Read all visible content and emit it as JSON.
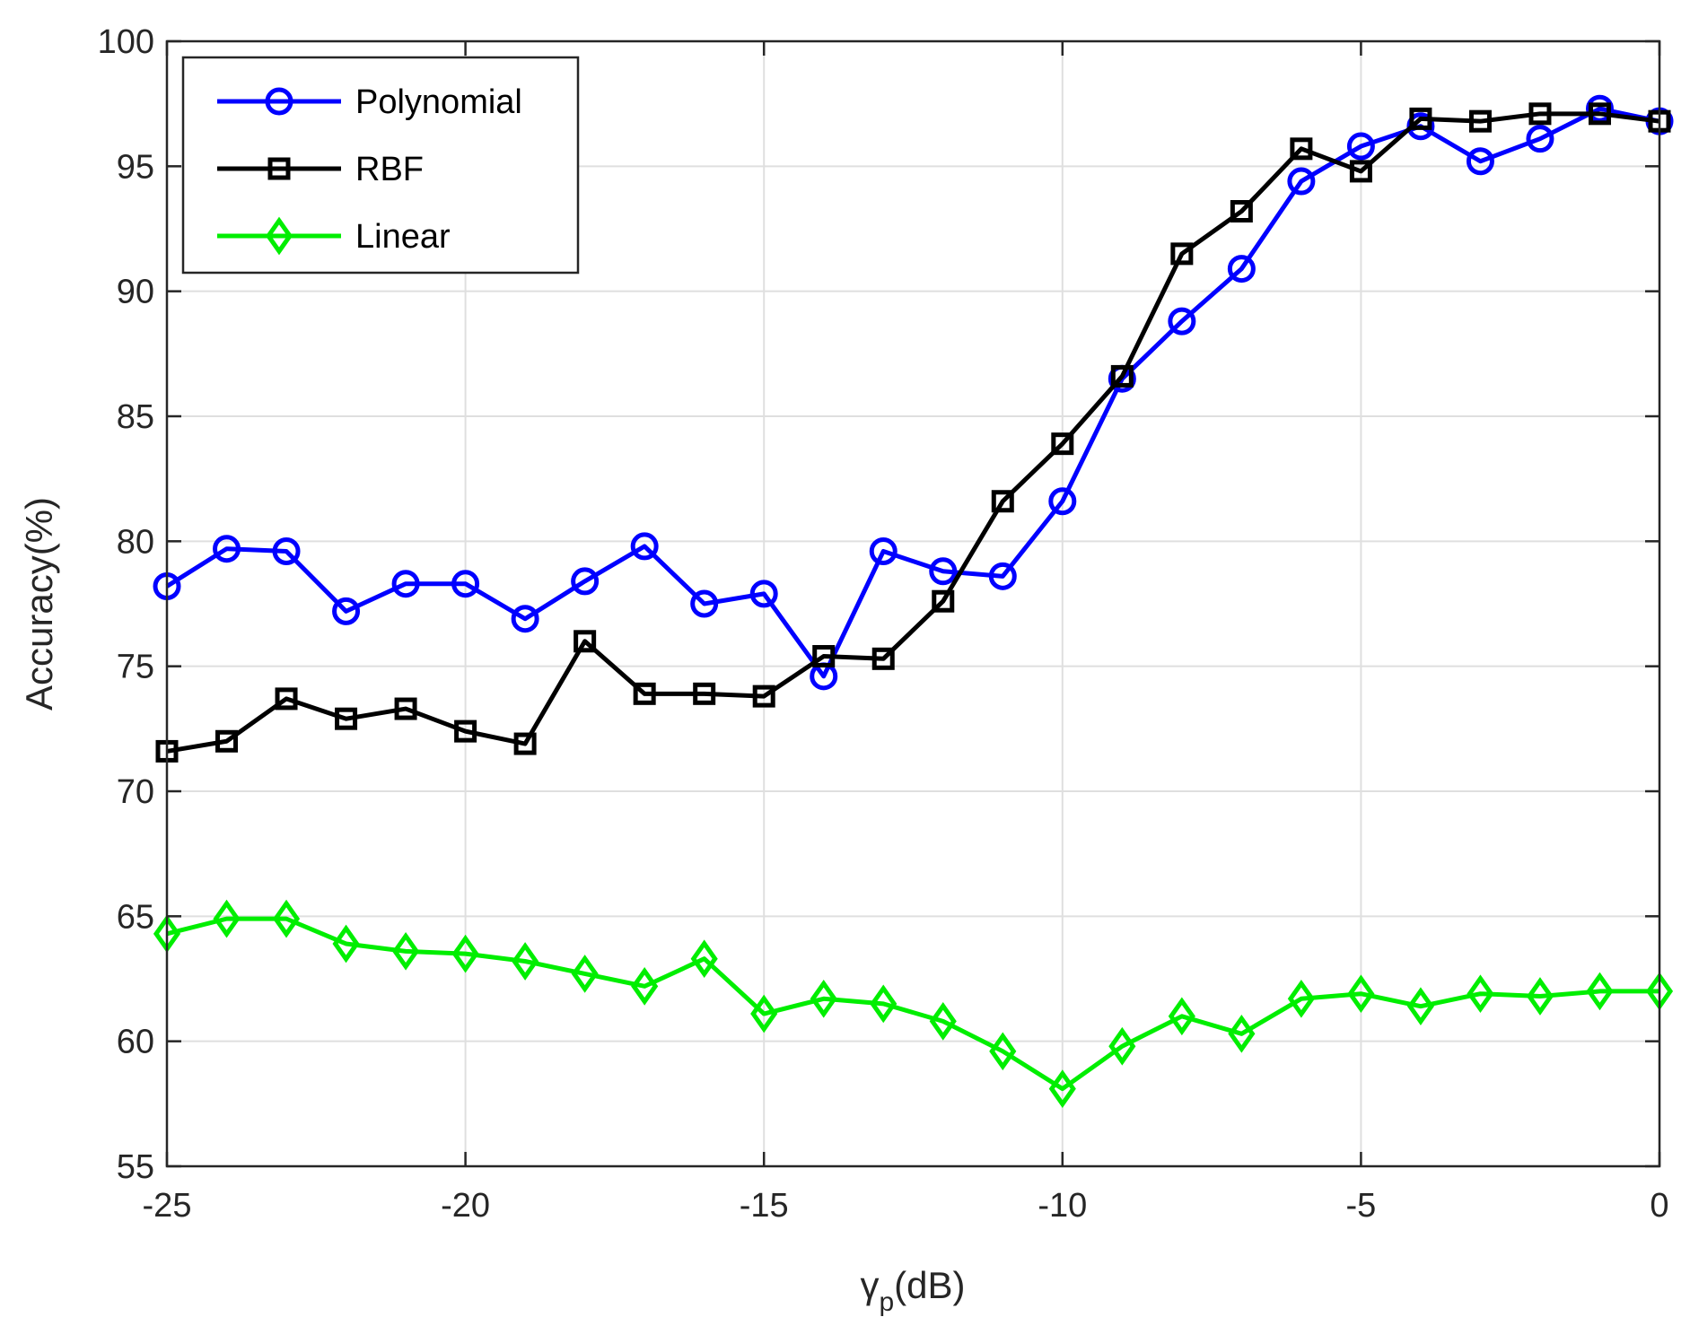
{
  "chart_data": {
    "type": "line",
    "title": "",
    "xlabel": "γ",
    "xlabel_sub": "p",
    "xlabel_tail": "(dB)",
    "ylabel": "Accuracy(%)",
    "xlim": [
      -25,
      0
    ],
    "ylim": [
      55,
      100
    ],
    "xticks": [
      -25,
      -20,
      -15,
      -10,
      -5,
      0
    ],
    "yticks": [
      55,
      60,
      65,
      70,
      75,
      80,
      85,
      90,
      95,
      100
    ],
    "grid": true,
    "legend_position": "top-left",
    "x": [
      -25,
      -24,
      -23,
      -22,
      -21,
      -20,
      -19,
      -18,
      -17,
      -16,
      -15,
      -14,
      -13,
      -12,
      -11,
      -10,
      -9,
      -8,
      -7,
      -6,
      -5,
      -4,
      -3,
      -2,
      -1,
      0
    ],
    "series": [
      {
        "name": "Polynomial",
        "color": "#0000ff",
        "marker": "circle",
        "values": [
          78.2,
          79.7,
          79.6,
          77.2,
          78.3,
          78.3,
          76.9,
          78.4,
          79.8,
          77.5,
          77.9,
          74.6,
          79.6,
          78.8,
          78.6,
          81.6,
          86.5,
          88.8,
          90.9,
          94.4,
          95.8,
          96.6,
          95.2,
          96.1,
          97.3,
          96.8
        ]
      },
      {
        "name": "RBF",
        "color": "#000000",
        "marker": "square",
        "values": [
          71.6,
          72.0,
          73.7,
          72.9,
          73.3,
          72.4,
          71.9,
          76.0,
          73.9,
          73.9,
          73.8,
          75.4,
          75.3,
          77.6,
          81.6,
          83.9,
          86.6,
          91.5,
          93.2,
          95.7,
          94.8,
          96.9,
          96.8,
          97.1,
          97.1,
          96.8
        ]
      },
      {
        "name": "Linear",
        "color": "#00ee00",
        "marker": "diamond",
        "values": [
          64.3,
          64.9,
          64.9,
          63.9,
          63.6,
          63.5,
          63.2,
          62.7,
          62.2,
          63.3,
          61.1,
          61.7,
          61.5,
          60.8,
          59.6,
          58.1,
          59.8,
          61.0,
          60.3,
          61.7,
          61.9,
          61.4,
          61.9,
          61.8,
          62.0,
          62.0
        ]
      }
    ]
  }
}
